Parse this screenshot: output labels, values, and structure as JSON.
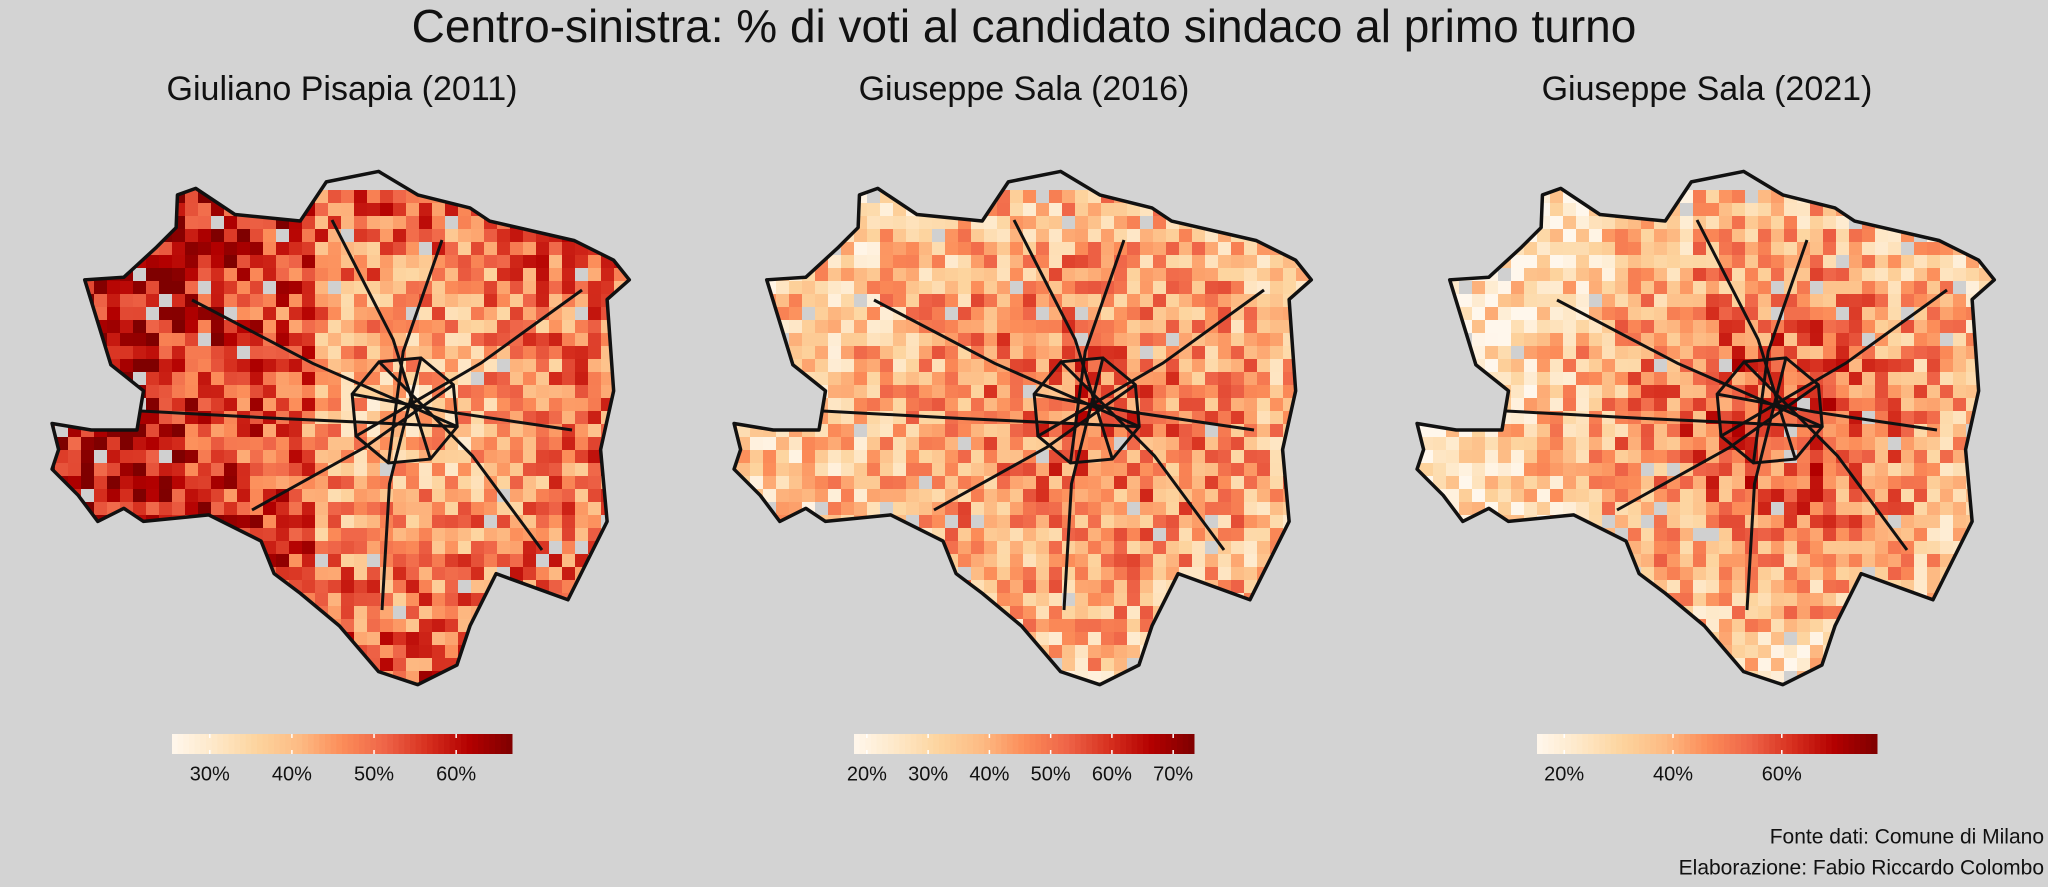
{
  "title": "Centro-sinistra: % di voti al candidato sindaco al primo turno",
  "maps": [
    {
      "title": "Giuliano Pisapia (2011)",
      "colorbar": {
        "lim": [
          25.4,
          66.8
        ],
        "ticks": [
          {
            "value": 30,
            "label": "30%"
          },
          {
            "value": 40,
            "label": "40%"
          },
          {
            "value": 50,
            "label": "50%"
          },
          {
            "value": 60,
            "label": "60%"
          }
        ]
      }
    },
    {
      "title": "Giuseppe Sala (2016)",
      "colorbar": {
        "lim": [
          17.9,
          73.4
        ],
        "ticks": [
          {
            "value": 20,
            "label": "20%"
          },
          {
            "value": 30,
            "label": "30%"
          },
          {
            "value": 40,
            "label": "40%"
          },
          {
            "value": 50,
            "label": "50%"
          },
          {
            "value": 60,
            "label": "60%"
          },
          {
            "value": 70,
            "label": "70%"
          }
        ]
      }
    },
    {
      "title": "Giuseppe Sala (2021)",
      "colorbar": {
        "lim": [
          15.0,
          77.5
        ],
        "ticks": [
          {
            "value": 20,
            "label": "20%"
          },
          {
            "value": 40,
            "label": "40%"
          },
          {
            "value": 60,
            "label": "60%"
          }
        ]
      }
    }
  ],
  "footer": {
    "source": "Fonte dati: Comune di Milano",
    "author": "Elaborazione: Fabio Riccardo Colombo"
  }
}
